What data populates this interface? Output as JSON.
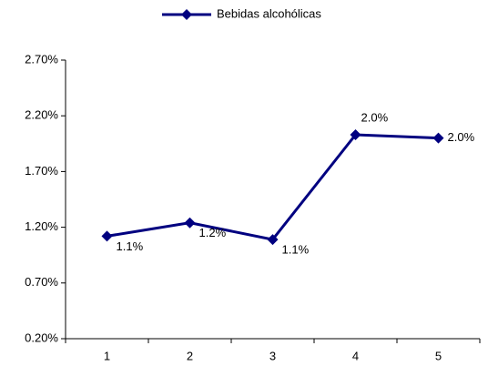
{
  "chart_data": {
    "type": "line",
    "categories": [
      "1",
      "2",
      "3",
      "4",
      "5"
    ],
    "series": [
      {
        "name": "Bebidas alcohólicas",
        "color": "#000080",
        "values": [
          1.12,
          1.24,
          1.09,
          2.03,
          2.0
        ],
        "value_labels": [
          "1.1%",
          "1.2%",
          "1.1%",
          "2.0%",
          "2.0%"
        ]
      }
    ],
    "ylim": [
      0.2,
      2.7
    ],
    "yticks": [
      {
        "value": 0.2,
        "label": "0.20%"
      },
      {
        "value": 0.7,
        "label": "0.70%"
      },
      {
        "value": 1.2,
        "label": "1.20%"
      },
      {
        "value": 1.7,
        "label": "1.70%"
      },
      {
        "value": 2.2,
        "label": "2.20%"
      },
      {
        "value": 2.7,
        "label": "2.70%"
      }
    ],
    "legend": "top",
    "grid": false
  }
}
